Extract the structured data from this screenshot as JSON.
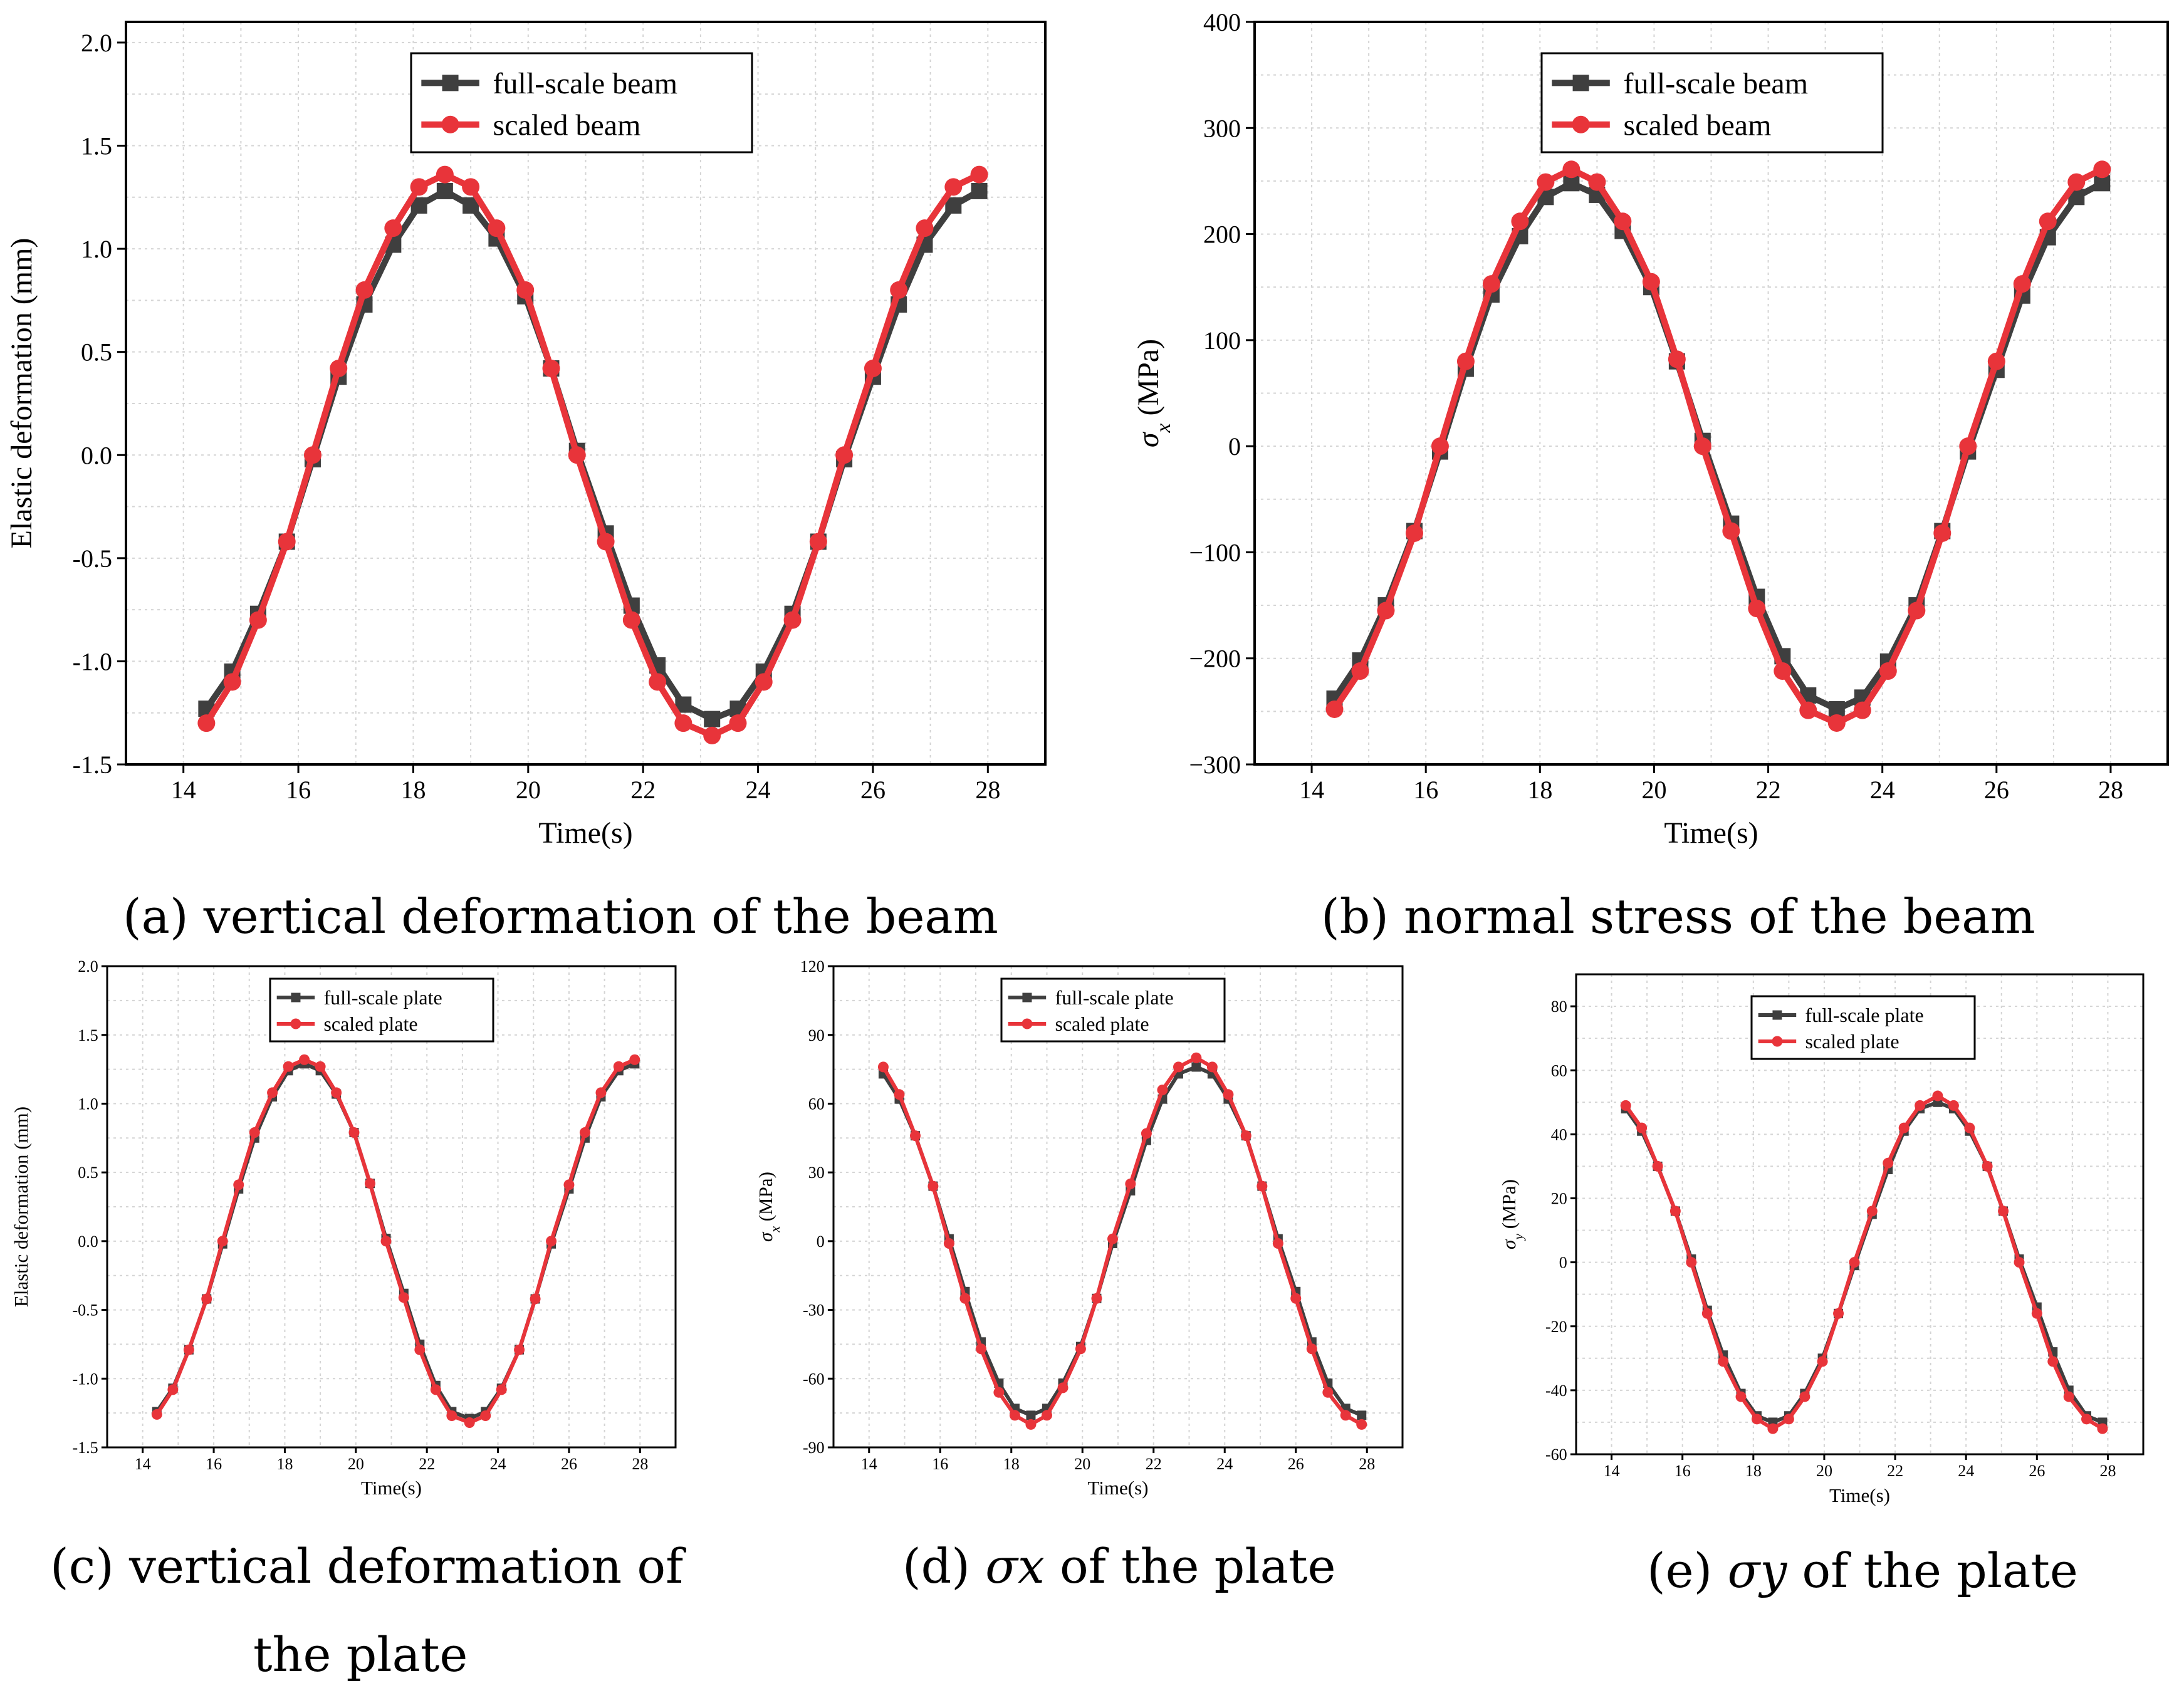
{
  "colors": {
    "full": "#3f3f3f",
    "scaled": "#e8343a",
    "grid": "#d4d4d4"
  },
  "captions": {
    "a": "(a) vertical deformation of the beam",
    "b": "(b) normal stress of the beam",
    "c1": "(c) vertical deformation of",
    "c2": "the plate",
    "d_pre": "(d) ",
    "d_sym": "σx",
    "d_post": " of the plate",
    "e_pre": "(e) ",
    "e_sym": "σy",
    "e_post": " of the plate"
  },
  "chart_data": [
    {
      "id": "a",
      "type": "line",
      "xlabel": "Time(s)",
      "ylabel": "Elastic deformation (mm)",
      "xlim": [
        13,
        29
      ],
      "xticks": [
        14,
        16,
        18,
        20,
        22,
        24,
        26,
        28
      ],
      "xtick_labels": [
        "14",
        "16",
        "18",
        "20",
        "22",
        "24",
        "26",
        "28"
      ],
      "ylim": [
        -1.5,
        2.1
      ],
      "yticks": [
        -1.5,
        -1.0,
        -0.5,
        0.0,
        0.5,
        1.0,
        1.5,
        2.0
      ],
      "ytick_labels": [
        "-1.5",
        "-1.0",
        "-0.5",
        "0.0",
        "0.5",
        "1.0",
        "1.5",
        "2.0"
      ],
      "legend": [
        "full-scale beam",
        "scaled beam"
      ],
      "series": [
        {
          "name": "full-scale beam",
          "x": [
            14.4,
            14.85,
            15.3,
            15.8,
            16.25,
            16.7,
            17.15,
            17.65,
            18.1,
            18.55,
            19.0,
            19.45,
            19.95,
            20.4,
            20.85,
            21.35,
            21.8,
            22.25,
            22.7,
            23.2,
            23.65,
            24.1,
            24.6,
            25.05,
            25.5,
            26.0,
            26.45,
            26.9,
            27.4,
            27.85
          ],
          "values": [
            -1.23,
            -1.05,
            -0.77,
            -0.42,
            -0.02,
            0.38,
            0.73,
            1.02,
            1.21,
            1.28,
            1.21,
            1.05,
            0.77,
            0.42,
            0.02,
            -0.38,
            -0.73,
            -1.02,
            -1.21,
            -1.28,
            -1.23,
            -1.05,
            -0.77,
            -0.42,
            -0.02,
            0.38,
            0.73,
            1.02,
            1.21,
            1.28
          ]
        },
        {
          "name": "scaled beam",
          "x": [
            14.4,
            14.85,
            15.3,
            15.8,
            16.25,
            16.7,
            17.15,
            17.65,
            18.1,
            18.55,
            19.0,
            19.45,
            19.95,
            20.4,
            20.85,
            21.35,
            21.8,
            22.25,
            22.7,
            23.2,
            23.65,
            24.1,
            24.6,
            25.05,
            25.5,
            26.0,
            26.45,
            26.9,
            27.4,
            27.85
          ],
          "values": [
            -1.3,
            -1.1,
            -0.8,
            -0.42,
            0.0,
            0.42,
            0.8,
            1.1,
            1.3,
            1.36,
            1.3,
            1.1,
            0.8,
            0.42,
            0.0,
            -0.42,
            -0.8,
            -1.1,
            -1.3,
            -1.36,
            -1.3,
            -1.1,
            -0.8,
            -0.42,
            0.0,
            0.42,
            0.8,
            1.1,
            1.3,
            1.36
          ]
        }
      ]
    },
    {
      "id": "b",
      "type": "line",
      "xlabel": "Time(s)",
      "ylabel": "σx (MPa)",
      "xlim": [
        13,
        29
      ],
      "xticks": [
        14,
        16,
        18,
        20,
        22,
        24,
        26,
        28
      ],
      "xtick_labels": [
        "14",
        "16",
        "18",
        "20",
        "22",
        "24",
        "26",
        "28"
      ],
      "ylim": [
        -300,
        400
      ],
      "yticks": [
        -300,
        -200,
        -100,
        0,
        100,
        200,
        300,
        400
      ],
      "ytick_labels": [
        "−300",
        "−200",
        "−100",
        "0",
        "100",
        "200",
        "300",
        "400"
      ],
      "legend": [
        "full-scale beam",
        "scaled beam"
      ],
      "series": [
        {
          "name": "full-scale beam",
          "x": [
            14.4,
            14.85,
            15.3,
            15.8,
            16.25,
            16.7,
            17.15,
            17.65,
            18.1,
            18.55,
            19.0,
            19.45,
            19.95,
            20.4,
            20.85,
            21.35,
            21.8,
            22.25,
            22.7,
            23.2,
            23.65,
            24.1,
            24.6,
            25.05,
            25.5,
            26.0,
            26.45,
            26.9,
            27.4,
            27.85
          ],
          "values": [
            -238,
            -202,
            -150,
            -80,
            -5,
            73,
            143,
            198,
            235,
            248,
            237,
            203,
            150,
            80,
            5,
            -73,
            -142,
            -198,
            -235,
            -248,
            -237,
            -203,
            -150,
            -80,
            -5,
            72,
            142,
            197,
            235,
            248
          ]
        },
        {
          "name": "scaled beam",
          "x": [
            14.4,
            14.85,
            15.3,
            15.8,
            16.25,
            16.7,
            17.15,
            17.65,
            18.1,
            18.55,
            19.0,
            19.45,
            19.95,
            20.4,
            20.85,
            21.35,
            21.8,
            22.25,
            22.7,
            23.2,
            23.65,
            24.1,
            24.6,
            25.05,
            25.5,
            26.0,
            26.45,
            26.9,
            27.4,
            27.85
          ],
          "values": [
            -248,
            -212,
            -155,
            -82,
            0,
            80,
            153,
            212,
            249,
            261,
            249,
            212,
            155,
            82,
            0,
            -80,
            -153,
            -212,
            -249,
            -261,
            -249,
            -212,
            -155,
            -82,
            0,
            80,
            153,
            212,
            249,
            261
          ]
        }
      ]
    },
    {
      "id": "c",
      "type": "line",
      "xlabel": "Time(s)",
      "ylabel": "Elastic deformation (mm)",
      "xlim": [
        13,
        29
      ],
      "xticks": [
        14,
        16,
        18,
        20,
        22,
        24,
        26,
        28
      ],
      "xtick_labels": [
        "14",
        "16",
        "18",
        "20",
        "22",
        "24",
        "26",
        "28"
      ],
      "ylim": [
        -1.5,
        2.0
      ],
      "yticks": [
        -1.5,
        -1.0,
        -0.5,
        0.0,
        0.5,
        1.0,
        1.5,
        2.0
      ],
      "ytick_labels": [
        "-1.5",
        "-1.0",
        "-0.5",
        "0.0",
        "0.5",
        "1.0",
        "1.5",
        "2.0"
      ],
      "legend": [
        "full-scale plate",
        "scaled plate"
      ],
      "series": [
        {
          "name": "full-scale plate",
          "x": [
            14.4,
            14.85,
            15.3,
            15.8,
            16.25,
            16.7,
            17.15,
            17.65,
            18.1,
            18.55,
            19.0,
            19.45,
            19.95,
            20.4,
            20.85,
            21.35,
            21.8,
            22.25,
            22.7,
            23.2,
            23.65,
            24.1,
            24.6,
            25.05,
            25.5,
            26.0,
            26.45,
            26.9,
            27.4,
            27.85
          ],
          "values": [
            -1.24,
            -1.07,
            -0.79,
            -0.42,
            -0.02,
            0.38,
            0.75,
            1.05,
            1.24,
            1.29,
            1.24,
            1.07,
            0.79,
            0.42,
            0.02,
            -0.38,
            -0.75,
            -1.05,
            -1.24,
            -1.29,
            -1.24,
            -1.07,
            -0.79,
            -0.42,
            -0.02,
            0.38,
            0.75,
            1.05,
            1.24,
            1.29
          ]
        },
        {
          "name": "scaled plate",
          "x": [
            14.4,
            14.85,
            15.3,
            15.8,
            16.25,
            16.7,
            17.15,
            17.65,
            18.1,
            18.55,
            19.0,
            19.45,
            19.95,
            20.4,
            20.85,
            21.35,
            21.8,
            22.25,
            22.7,
            23.2,
            23.65,
            24.1,
            24.6,
            25.05,
            25.5,
            26.0,
            26.45,
            26.9,
            27.4,
            27.85
          ],
          "values": [
            -1.26,
            -1.08,
            -0.79,
            -0.42,
            0.0,
            0.41,
            0.79,
            1.08,
            1.27,
            1.32,
            1.27,
            1.08,
            0.79,
            0.42,
            0.0,
            -0.41,
            -0.79,
            -1.08,
            -1.27,
            -1.32,
            -1.27,
            -1.08,
            -0.79,
            -0.42,
            0.0,
            0.41,
            0.79,
            1.08,
            1.27,
            1.32
          ]
        }
      ]
    },
    {
      "id": "d",
      "type": "line",
      "xlabel": "Time(s)",
      "ylabel": "σx (MPa)",
      "xlim": [
        13,
        29
      ],
      "xticks": [
        14,
        16,
        18,
        20,
        22,
        24,
        26,
        28
      ],
      "xtick_labels": [
        "14",
        "16",
        "18",
        "20",
        "22",
        "24",
        "26",
        "28"
      ],
      "ylim": [
        -90,
        120
      ],
      "yticks": [
        -90,
        -60,
        -30,
        0,
        30,
        60,
        90,
        120
      ],
      "ytick_labels": [
        "-90",
        "-60",
        "-30",
        "0",
        "30",
        "60",
        "90",
        "120"
      ],
      "legend": [
        "full-scale plate",
        "scaled plate"
      ],
      "series": [
        {
          "name": "full-scale plate",
          "x": [
            14.4,
            14.85,
            15.3,
            15.8,
            16.25,
            16.7,
            17.15,
            17.65,
            18.1,
            18.55,
            19.0,
            19.45,
            19.95,
            20.4,
            20.85,
            21.35,
            21.8,
            22.25,
            22.7,
            23.2,
            23.65,
            24.1,
            24.6,
            25.05,
            25.5,
            26.0,
            26.45,
            26.9,
            27.4,
            27.85
          ],
          "values": [
            73,
            62,
            46,
            24,
            1,
            -22,
            -44,
            -62,
            -73,
            -76,
            -73,
            -62,
            -46,
            -25,
            -1,
            22,
            44,
            62,
            73,
            76,
            73,
            62,
            46,
            24,
            1,
            -22,
            -44,
            -62,
            -73,
            -76
          ]
        },
        {
          "name": "scaled plate",
          "x": [
            14.4,
            14.85,
            15.3,
            15.8,
            16.25,
            16.7,
            17.15,
            17.65,
            18.1,
            18.55,
            19.0,
            19.45,
            19.95,
            20.4,
            20.85,
            21.35,
            21.8,
            22.25,
            22.7,
            23.2,
            23.65,
            24.1,
            24.6,
            25.05,
            25.5,
            26.0,
            26.45,
            26.9,
            27.4,
            27.85
          ],
          "values": [
            76,
            64,
            46,
            24,
            -1,
            -25,
            -47,
            -66,
            -76,
            -80,
            -76,
            -64,
            -47,
            -25,
            1,
            25,
            47,
            66,
            76,
            80,
            76,
            64,
            46,
            24,
            -1,
            -25,
            -47,
            -66,
            -76,
            -80
          ]
        }
      ]
    },
    {
      "id": "e",
      "type": "line",
      "xlabel": "Time(s)",
      "ylabel": "σy (MPa)",
      "xlim": [
        13,
        29
      ],
      "xticks": [
        14,
        16,
        18,
        20,
        22,
        24,
        26,
        28
      ],
      "xtick_labels": [
        "14",
        "16",
        "18",
        "20",
        "22",
        "24",
        "26",
        "28"
      ],
      "ylim": [
        -60,
        90
      ],
      "yticks": [
        -60,
        -40,
        -20,
        0,
        20,
        40,
        60,
        80
      ],
      "ytick_labels": [
        "-60",
        "-40",
        "-20",
        "0",
        "20",
        "40",
        "60",
        "80"
      ],
      "legend": [
        "full-scale plate",
        "scaled plate"
      ],
      "series": [
        {
          "name": "full-scale plate",
          "x": [
            14.4,
            14.85,
            15.3,
            15.8,
            16.25,
            16.7,
            17.15,
            17.65,
            18.1,
            18.55,
            19.0,
            19.45,
            19.95,
            20.4,
            20.85,
            21.35,
            21.8,
            22.25,
            22.7,
            23.2,
            23.65,
            24.1,
            24.6,
            25.05,
            25.5,
            26.0,
            26.45,
            26.9,
            27.4,
            27.85
          ],
          "values": [
            48,
            41,
            30,
            16,
            1,
            -15,
            -29,
            -41,
            -48,
            -50,
            -48,
            -41,
            -30,
            -16,
            -1,
            15,
            29,
            41,
            48,
            50,
            48,
            41,
            30,
            16,
            1,
            -14,
            -28,
            -40,
            -48,
            -50
          ]
        },
        {
          "name": "scaled plate",
          "x": [
            14.4,
            14.85,
            15.3,
            15.8,
            16.25,
            16.7,
            17.15,
            17.65,
            18.1,
            18.55,
            19.0,
            19.45,
            19.95,
            20.4,
            20.85,
            21.35,
            21.8,
            22.25,
            22.7,
            23.2,
            23.65,
            24.1,
            24.6,
            25.05,
            25.5,
            26.0,
            26.45,
            26.9,
            27.4,
            27.85
          ],
          "values": [
            49,
            42,
            30,
            16,
            0,
            -16,
            -31,
            -42,
            -49,
            -52,
            -49,
            -42,
            -31,
            -16,
            0,
            16,
            31,
            42,
            49,
            52,
            49,
            42,
            30,
            16,
            0,
            -16,
            -31,
            -42,
            -49,
            -52
          ]
        }
      ]
    }
  ]
}
